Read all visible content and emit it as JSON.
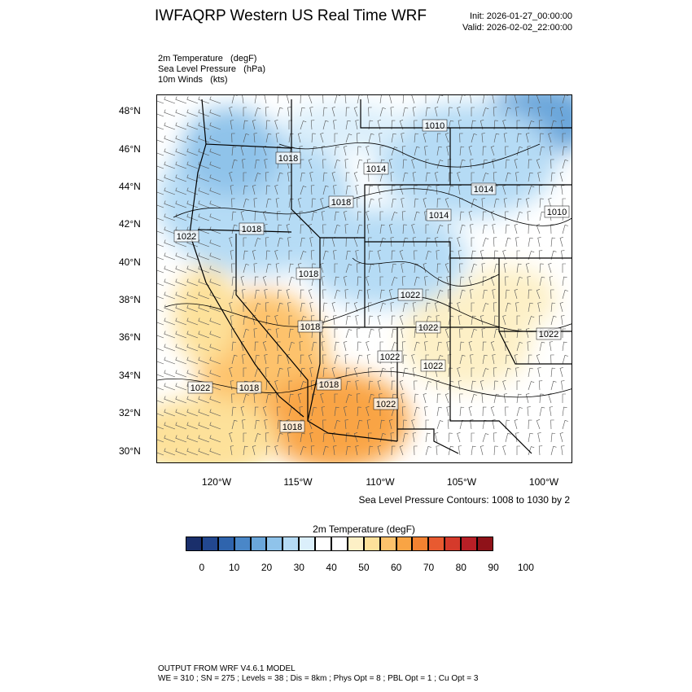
{
  "header": {
    "title": "IWFAQRP Western US Real Time WRF",
    "init": "Init: 2026-01-27_00:00:00",
    "valid": "Valid: 2026-02-02_22:00:00"
  },
  "fields": {
    "line1": "2m Temperature   (degF)",
    "line2": "Sea Level Pressure   (hPa)",
    "line3": "10m Winds   (kts)"
  },
  "lat_labels": [
    "48°N",
    "46°N",
    "44°N",
    "42°N",
    "40°N",
    "38°N",
    "36°N",
    "34°N",
    "32°N",
    "30°N"
  ],
  "lon_labels": [
    "120°W",
    "115°W",
    "110°W",
    "105°W",
    "100°W"
  ],
  "contour_labels": [
    "1010",
    "1018",
    "1014",
    "1014",
    "1018",
    "1014",
    "1010",
    "1022",
    "1018",
    "1018",
    "1018",
    "1022",
    "1022",
    "1022",
    "1022",
    "1022",
    "1018",
    "1018",
    "1022",
    "1018",
    "1022"
  ],
  "contour_note": "Sea Level Pressure Contours: 1008 to 1030 by 2",
  "colorbar": {
    "title": "2m Temperature  (degF)",
    "colors": [
      "#1a2f6b",
      "#22478f",
      "#2f64ad",
      "#4a87c8",
      "#6aa6da",
      "#8fc3ea",
      "#b5dbf5",
      "#dbeffb",
      "#ffffff",
      "#ffffff",
      "#fdf0c6",
      "#fde19a",
      "#fdc26c",
      "#f9a444",
      "#f38231",
      "#e85a30",
      "#d53a2b",
      "#b81f26",
      "#8f1219"
    ],
    "ticks": [
      "0",
      "10",
      "20",
      "30",
      "40",
      "50",
      "60",
      "70",
      "80",
      "90",
      "100"
    ]
  },
  "footer": {
    "line1": "OUTPUT FROM WRF V4.6.1 MODEL",
    "line2": "WE = 310 ; SN = 275 ; Levels = 38 ; Dis = 8km ; Phys Opt = 8 ; PBL Opt = 1 ; Cu Opt = 3"
  }
}
